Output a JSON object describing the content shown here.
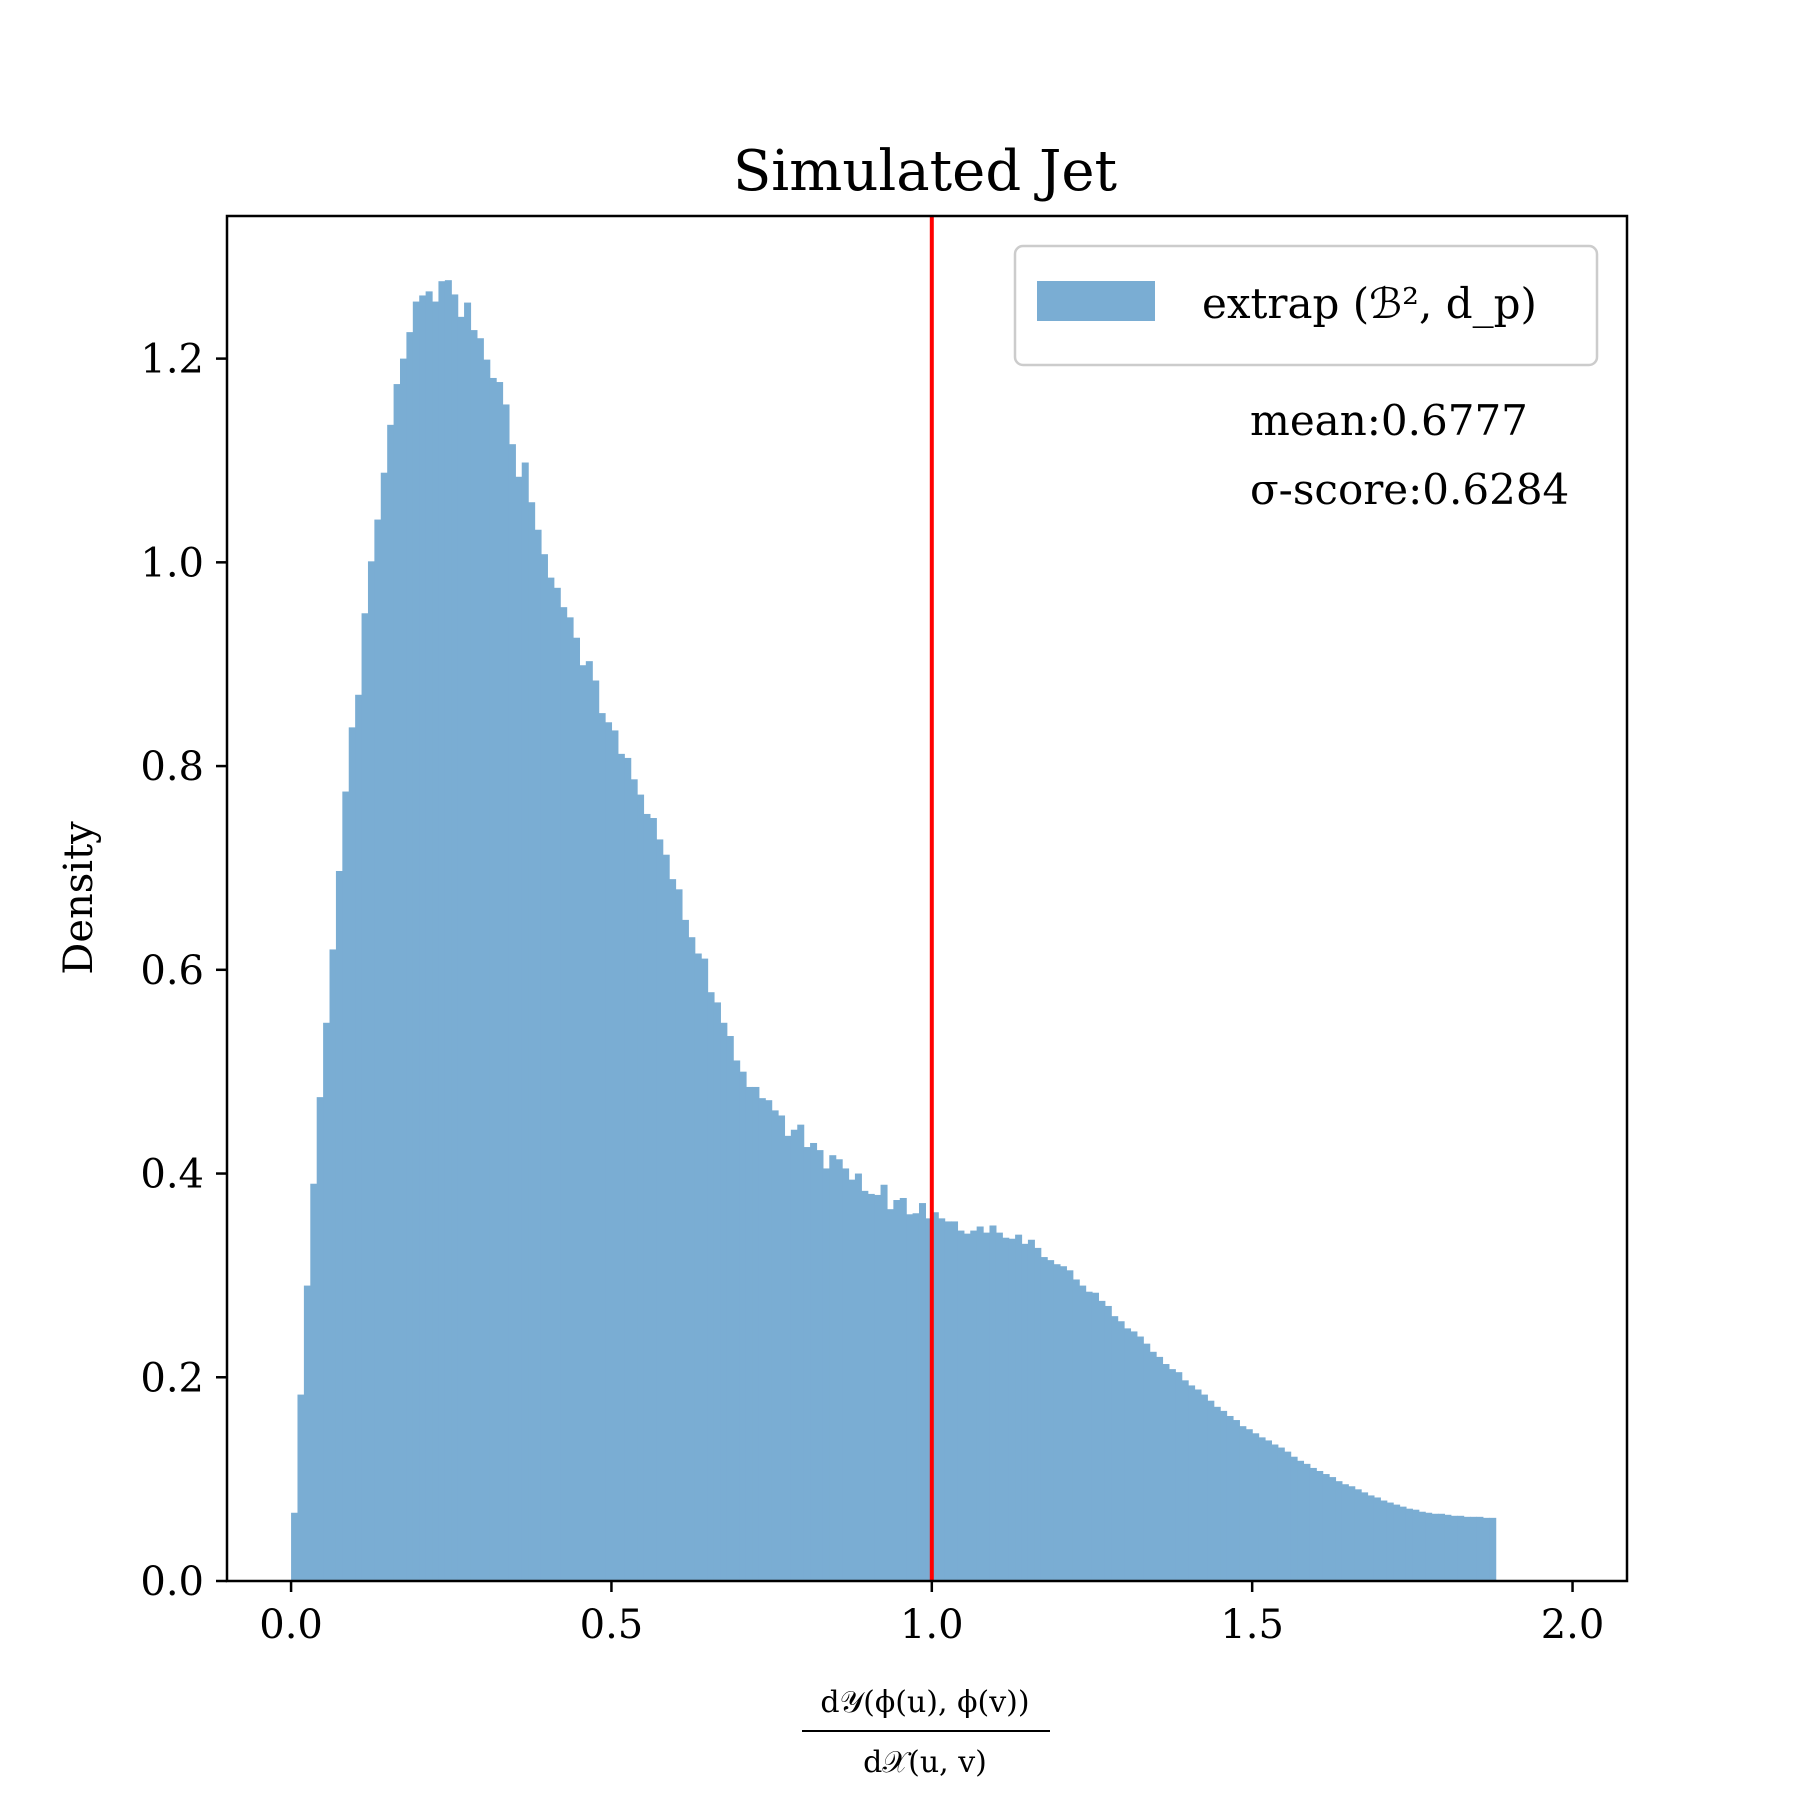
{
  "chart_data": {
    "type": "bar",
    "title": "Simulated Jet",
    "ylabel": "Density",
    "xlabel_numerator": "d𝒴(ϕ(u), ϕ(v))",
    "xlabel_denominator": "d𝒳(u, v)",
    "xlim": [
      -0.1,
      2.085
    ],
    "ylim": [
      0,
      1.34
    ],
    "xticks": [
      0.0,
      0.5,
      1.0,
      1.5,
      2.0
    ],
    "xtick_labels": [
      "0.0",
      "0.5",
      "1.0",
      "1.5",
      "2.0"
    ],
    "yticks": [
      0.0,
      0.2,
      0.4,
      0.6,
      0.8,
      1.0,
      1.2
    ],
    "ytick_labels": [
      "0.0",
      "0.2",
      "0.4",
      "0.6",
      "0.8",
      "1.0",
      "1.2"
    ],
    "grid": false,
    "bin_start": 0.0,
    "bin_width": 0.01,
    "series": [
      {
        "name": "extrap (ℬ², d_p)",
        "color": "#7aadd3",
        "values": [
          0.067,
          0.183,
          0.29,
          0.39,
          0.475,
          0.548,
          0.62,
          0.697,
          0.775,
          0.838,
          0.87,
          0.95,
          1.001,
          1.042,
          1.088,
          1.135,
          1.175,
          1.2,
          1.226,
          1.256,
          1.262,
          1.266,
          1.256,
          1.276,
          1.277,
          1.263,
          1.241,
          1.255,
          1.228,
          1.22,
          1.199,
          1.181,
          1.177,
          1.155,
          1.116,
          1.084,
          1.098,
          1.059,
          1.032,
          1.008,
          0.985,
          0.975,
          0.956,
          0.946,
          0.926,
          0.899,
          0.903,
          0.884,
          0.852,
          0.843,
          0.835,
          0.812,
          0.808,
          0.787,
          0.772,
          0.753,
          0.749,
          0.728,
          0.713,
          0.689,
          0.679,
          0.649,
          0.632,
          0.616,
          0.611,
          0.578,
          0.568,
          0.548,
          0.535,
          0.511,
          0.5,
          0.485,
          0.485,
          0.474,
          0.472,
          0.462,
          0.457,
          0.437,
          0.443,
          0.448,
          0.426,
          0.43,
          0.423,
          0.405,
          0.418,
          0.414,
          0.405,
          0.394,
          0.4,
          0.383,
          0.38,
          0.379,
          0.389,
          0.365,
          0.374,
          0.376,
          0.36,
          0.361,
          0.371,
          0.356,
          0.362,
          0.356,
          0.353,
          0.353,
          0.344,
          0.341,
          0.344,
          0.348,
          0.342,
          0.349,
          0.342,
          0.337,
          0.336,
          0.34,
          0.331,
          0.335,
          0.327,
          0.318,
          0.315,
          0.311,
          0.309,
          0.305,
          0.296,
          0.29,
          0.284,
          0.283,
          0.275,
          0.27,
          0.26,
          0.255,
          0.248,
          0.245,
          0.24,
          0.233,
          0.225,
          0.22,
          0.213,
          0.208,
          0.205,
          0.197,
          0.192,
          0.188,
          0.183,
          0.177,
          0.171,
          0.167,
          0.162,
          0.158,
          0.152,
          0.149,
          0.145,
          0.141,
          0.138,
          0.134,
          0.131,
          0.127,
          0.122,
          0.118,
          0.115,
          0.111,
          0.108,
          0.105,
          0.102,
          0.098,
          0.095,
          0.093,
          0.09,
          0.087,
          0.084,
          0.082,
          0.079,
          0.077,
          0.075,
          0.073,
          0.071,
          0.07,
          0.068,
          0.067,
          0.066,
          0.066,
          0.065,
          0.064,
          0.064,
          0.063,
          0.063,
          0.063,
          0.062,
          0.062
        ]
      }
    ],
    "vline": {
      "x": 1.0,
      "color": "#ff0000"
    },
    "legend": {
      "location": "upper right",
      "label": "extrap (ℬ², d_p)"
    },
    "annotations": {
      "mean": "mean:0.6777",
      "sigma": "σ-score:0.6284"
    }
  }
}
